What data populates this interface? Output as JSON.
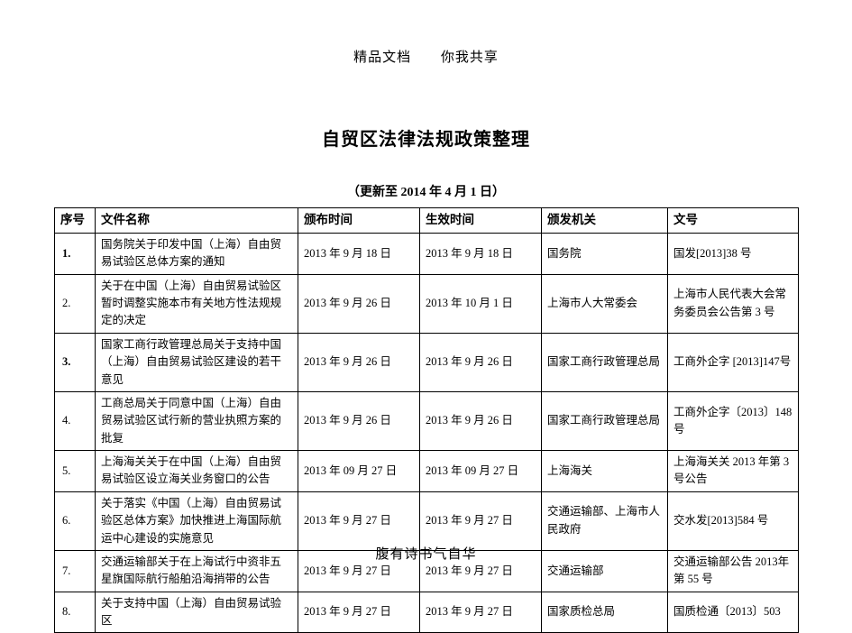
{
  "header": {
    "left": "精品文档",
    "right": "你我共享"
  },
  "title": "自贸区法律法规政策整理",
  "subtitle": "（更新至 2014 年 4 月 1 日）",
  "footer": "腹有诗书气自华",
  "columns": {
    "idx": "序号",
    "name": "文件名称",
    "pub": "颁布时间",
    "eff": "生效时间",
    "org": "颁发机关",
    "doc": "文号"
  },
  "rows": [
    {
      "idx": "1.",
      "idx_bold": true,
      "name": "国务院关于印发中国（上海）自由贸易试验区总体方案的通知",
      "pub": "2013 年 9 月 18 日",
      "eff": "2013 年 9 月 18 日",
      "org": "国务院",
      "doc": "国发[2013]38 号"
    },
    {
      "idx": "2.",
      "name": "关于在中国（上海）自由贸易试验区暂时调整实施本市有关地方性法规规定的决定",
      "pub": "2013 年 9 月 26 日",
      "eff": "2013 年 10 月 1 日",
      "org": "上海市人大常委会",
      "doc": "上海市人民代表大会常务委员会公告第 3 号"
    },
    {
      "idx": "3.",
      "idx_bold": true,
      "name": "国家工商行政管理总局关于支持中国（上海）自由贸易试验区建设的若干意见",
      "pub": "2013 年 9 月 26 日",
      "eff": "2013 年 9 月 26 日",
      "org": "国家工商行政管理总局",
      "doc": "工商外企字 [2013]147号"
    },
    {
      "idx": "4.",
      "name": "工商总局关于同意中国（上海）自由贸易试验区试行新的营业执照方案的批复",
      "pub": "2013 年 9 月 26 日",
      "eff": "2013 年 9 月 26 日",
      "org": "国家工商行政管理总局",
      "doc": "工商外企字〔2013〕148号"
    },
    {
      "idx": "5.",
      "name": "上海海关关于在中国（上海）自由贸易试验区设立海关业务窗口的公告",
      "pub": "2013 年 09 月 27 日",
      "eff": "2013 年 09 月 27 日",
      "org": "上海海关",
      "doc": "上海海关关 2013 年第 3号公告"
    },
    {
      "idx": "6.",
      "name": "关于落实《中国（上海）自由贸易试验区总体方案》加快推进上海国际航运中心建设的实施意见",
      "pub": "2013 年 9 月 27 日",
      "eff": "2013 年 9 月 27 日",
      "org": "交通运输部、上海市人民政府",
      "doc": "交水发[2013]584 号"
    },
    {
      "idx": "7.",
      "name": "交通运输部关于在上海试行中资非五星旗国际航行船舶沿海捎带的公告",
      "pub": "2013 年 9 月 27 日",
      "eff": "2013 年 9 月 27 日",
      "org": "交通运输部",
      "doc": "交通运输部公告 2013年第 55 号"
    },
    {
      "idx": "8.",
      "name": "关于支持中国（上海）自由贸易试验区",
      "pub": "2013 年 9 月 27 日",
      "eff": "2013 年 9 月 27 日",
      "org": "国家质检总局",
      "doc": "国质检通〔2013〕503"
    }
  ]
}
